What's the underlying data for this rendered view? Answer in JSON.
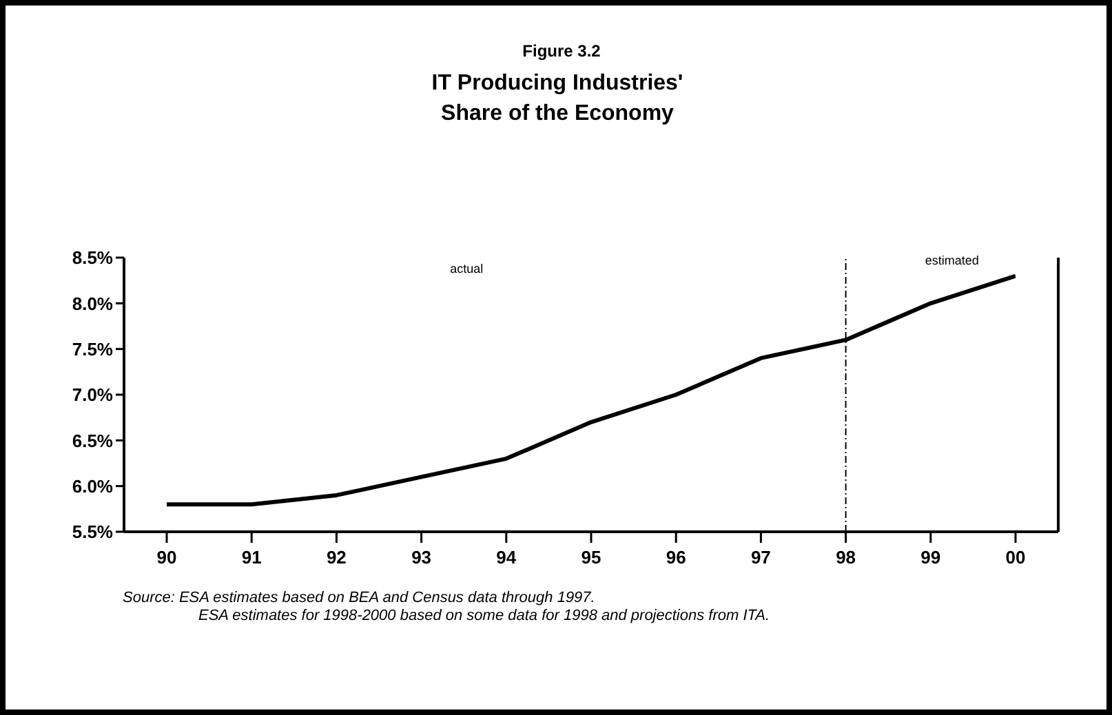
{
  "chart_data": {
    "type": "line",
    "title": "Figure 3.2",
    "subtitle": "IT Producing Industries' Share of the Economy",
    "categories": [
      "90",
      "91",
      "92",
      "93",
      "94",
      "95",
      "96",
      "97",
      "98",
      "99",
      "00"
    ],
    "series": [
      {
        "color": "#000000",
        "values": [
          5.8,
          5.8,
          5.9,
          6.1,
          6.3,
          6.7,
          7.0,
          7.4,
          7.6,
          8.0,
          8.3
        ]
      }
    ],
    "ylim": [
      5.5,
      8.5
    ],
    "yticks": [
      {
        "value": 5.5,
        "label": "5.5%"
      },
      {
        "value": 6.0,
        "label": "6.0%"
      },
      {
        "value": 6.5,
        "label": "6.5%"
      },
      {
        "value": 7.0,
        "label": "7.0%"
      },
      {
        "value": 7.5,
        "label": "7.5%"
      },
      {
        "value": 8.0,
        "label": "8.0%"
      },
      {
        "value": 8.5,
        "label": "8.5%"
      }
    ],
    "ref_lines": [
      {
        "axis": "x",
        "value": "98",
        "color": "#000000",
        "line_style": "dashed"
      }
    ],
    "annotations": [
      "actual",
      "estimated",
      "Source: ESA estimates based on BEA and Census data through 1997.",
      "ESA estimates for 1998-2000 based on some data for 1998 and projections from ITA."
    ],
    "marker": "none",
    "line_style": "solid"
  }
}
